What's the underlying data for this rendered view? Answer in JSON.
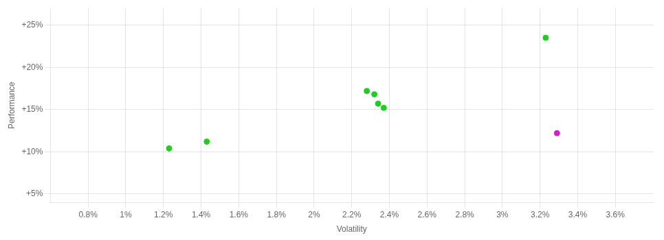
{
  "chart_data": {
    "type": "scatter",
    "xlabel": "Volatility",
    "ylabel": "Performance",
    "xlim": [
      0.006,
      0.038
    ],
    "ylim": [
      0.04,
      0.27
    ],
    "xticks": [
      {
        "value": 0.008,
        "label": "0.8%"
      },
      {
        "value": 0.01,
        "label": "1%"
      },
      {
        "value": 0.012,
        "label": "1.2%"
      },
      {
        "value": 0.014,
        "label": "1.4%"
      },
      {
        "value": 0.016,
        "label": "1.6%"
      },
      {
        "value": 0.018,
        "label": "1.8%"
      },
      {
        "value": 0.02,
        "label": "2%"
      },
      {
        "value": 0.022,
        "label": "2.2%"
      },
      {
        "value": 0.024,
        "label": "2.4%"
      },
      {
        "value": 0.026,
        "label": "2.6%"
      },
      {
        "value": 0.028,
        "label": "2.8%"
      },
      {
        "value": 0.03,
        "label": "3%"
      },
      {
        "value": 0.032,
        "label": "3.2%"
      },
      {
        "value": 0.034,
        "label": "3.4%"
      },
      {
        "value": 0.036,
        "label": "3.6%"
      }
    ],
    "yticks": [
      {
        "value": 0.05,
        "label": "+5%"
      },
      {
        "value": 0.1,
        "label": "+10%"
      },
      {
        "value": 0.15,
        "label": "+15%"
      },
      {
        "value": 0.2,
        "label": "+20%"
      },
      {
        "value": 0.25,
        "label": "+25%"
      }
    ],
    "grid": true,
    "series": [
      {
        "color": "#22cc22",
        "x": [
          0.0123,
          0.0143,
          0.0228,
          0.0232,
          0.0234,
          0.0237,
          0.0323
        ],
        "values": [
          0.104,
          0.112,
          0.172,
          0.168,
          0.157,
          0.152,
          0.235
        ]
      },
      {
        "color": "#cc22cc",
        "x": [
          0.0329
        ],
        "values": [
          0.122
        ]
      }
    ]
  }
}
